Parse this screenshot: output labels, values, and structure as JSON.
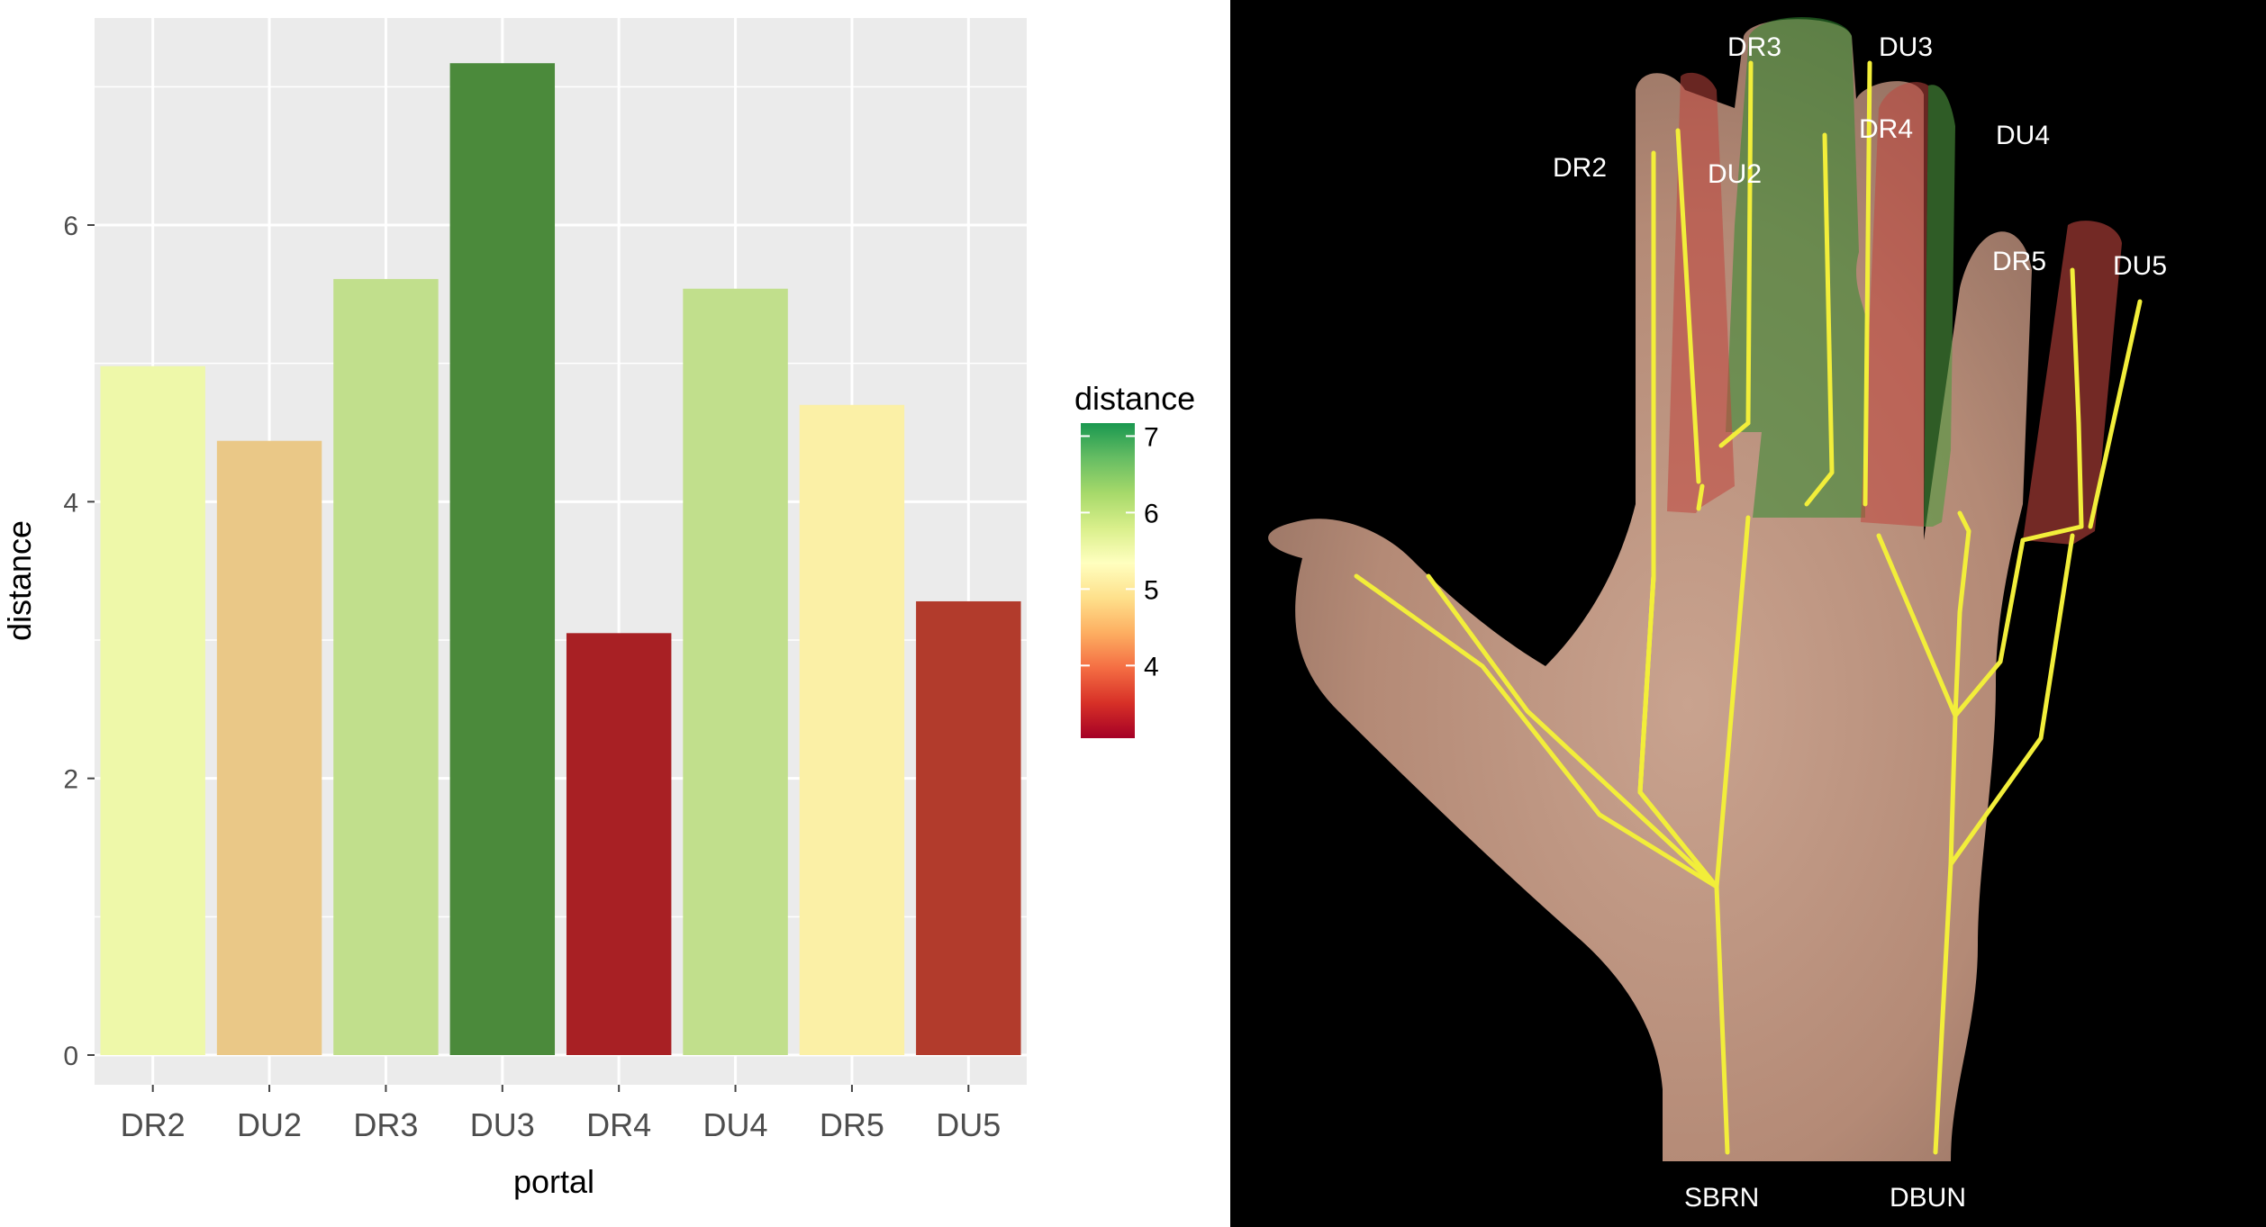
{
  "chart_data": {
    "type": "bar",
    "xlabel": "portal",
    "ylabel": "distance",
    "categories": [
      "DR2",
      "DU2",
      "DR3",
      "DU3",
      "DR4",
      "DU4",
      "DR5",
      "DU5"
    ],
    "values": [
      4.98,
      4.44,
      5.61,
      7.17,
      3.05,
      5.54,
      4.7,
      3.28
    ],
    "ylim": [
      0,
      7.5
    ],
    "yticks": [
      "0",
      "2",
      "4",
      "6"
    ],
    "grid": true,
    "legend": {
      "title": "distance",
      "placement": "right",
      "ticks": [
        "7",
        "6",
        "5",
        "4"
      ],
      "range": [
        3.05,
        7.17
      ],
      "colors": [
        "#a50026",
        "#d73027",
        "#f46d43",
        "#fdae61",
        "#fee08b",
        "#ffffbf",
        "#d9ef8b",
        "#a6d96a",
        "#66bd63",
        "#1a9850"
      ]
    },
    "colors": {
      "panel_bg": "#ebebeb",
      "grid": "#ffffff",
      "bars": [
        "#eef8a9",
        "#eac887",
        "#c1df8c",
        "#4b8a3b",
        "#a82024",
        "#c1df8c",
        "#fbf0a6",
        "#b23b2c"
      ]
    }
  },
  "diagram": {
    "labels": {
      "dr2": "DR2",
      "du2": "DU2",
      "dr3": "DR3",
      "du3": "DU3",
      "dr4": "DR4",
      "du4": "DU4",
      "dr5": "DR5",
      "du5": "DU5",
      "sbrn": "SBRN",
      "dbun": "DBUN"
    }
  }
}
